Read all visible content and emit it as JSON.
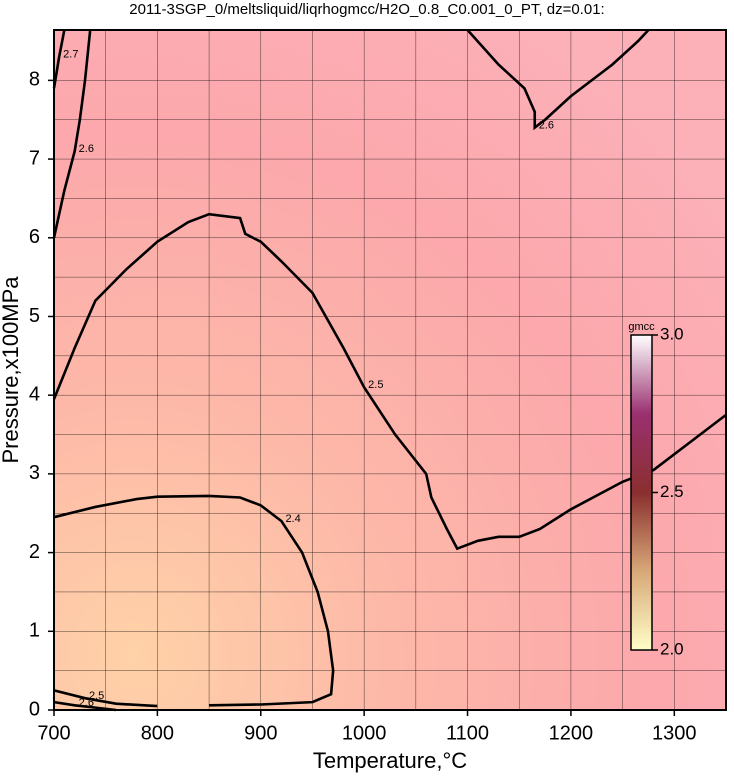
{
  "chart_data": {
    "type": "contour",
    "title": "2011-3SGP_0/meltsliquid/liqrhogmcc/H2O_0.8_C0.001_0_PT, dz=0.01:",
    "xlabel": "Temperature,°C",
    "ylabel": "Pressure,x100MPa",
    "xlim": [
      700,
      1350
    ],
    "ylim": [
      0,
      8.64
    ],
    "xticks": [
      700,
      800,
      900,
      1000,
      1100,
      1200,
      1300
    ],
    "yticks": [
      0,
      1,
      2,
      3,
      4,
      5,
      6,
      7,
      8
    ],
    "xminorticks": [
      750,
      850,
      950,
      1050,
      1150,
      1250
    ],
    "yminorticks": [
      0.5,
      1.5,
      2.5,
      3.5,
      4.5,
      5.5,
      6.5,
      7.5
    ],
    "grid": true,
    "line_color": "#000000",
    "contours": [
      {
        "level": 2.4,
        "x": [
          700,
          740,
          780,
          800,
          850,
          880,
          900,
          920,
          940,
          955,
          965,
          970,
          968,
          950,
          900,
          850
        ],
        "y": [
          2.45,
          2.58,
          2.68,
          2.71,
          2.72,
          2.7,
          2.6,
          2.4,
          2.0,
          1.5,
          1.0,
          0.5,
          0.2,
          0.1,
          0.07,
          0.06
        ]
      },
      {
        "level": 2.5,
        "x": [
          700,
          720,
          740,
          770,
          800,
          830,
          850,
          880,
          885,
          900,
          920,
          950,
          980,
          1000,
          1030,
          1060,
          1065,
          1080,
          1090,
          1110,
          1130,
          1150,
          1170,
          1200,
          1250,
          1280,
          1320,
          1350
        ],
        "y": [
          3.95,
          4.6,
          5.2,
          5.6,
          5.95,
          6.2,
          6.3,
          6.25,
          6.05,
          5.95,
          5.7,
          5.3,
          4.6,
          4.1,
          3.5,
          3.0,
          2.7,
          2.3,
          2.05,
          2.15,
          2.2,
          2.2,
          2.3,
          2.55,
          2.9,
          3.05,
          3.45,
          3.75
        ]
      },
      {
        "level": 2.6,
        "x": [
          1100,
          1130,
          1155,
          1165,
          1165,
          1175,
          1200,
          1240,
          1265,
          1275
        ],
        "y": [
          8.64,
          8.2,
          7.9,
          7.6,
          7.4,
          7.5,
          7.8,
          8.2,
          8.5,
          8.64
        ]
      },
      {
        "level": 2.6,
        "x": [
          700,
          710,
          720,
          725,
          730,
          735
        ],
        "y": [
          6.0,
          6.6,
          7.1,
          7.5,
          8.0,
          8.64
        ]
      },
      {
        "level": 2.7,
        "x": [
          700,
          705,
          710
        ],
        "y": [
          7.9,
          8.3,
          8.64
        ]
      },
      {
        "level": 2.5,
        "x": [
          700,
          730,
          760,
          800
        ],
        "y": [
          0.25,
          0.15,
          0.08,
          0.05
        ]
      },
      {
        "level": 2.6,
        "x": [
          700,
          720,
          740,
          760
        ],
        "y": [
          0.1,
          0.06,
          0.03,
          0.0
        ]
      }
    ],
    "colorbar": {
      "label": "gmcc",
      "clim": [
        2,
        3
      ],
      "ticks": [
        {
          "value": 2,
          "label": "2.0"
        },
        2.5,
        {
          "value": 3,
          "label": "3.0"
        }
      ],
      "colors": [
        "#ffffc8",
        "#d8a878",
        "#8a2f2f",
        "#9a3070",
        "#ffffff"
      ]
    }
  }
}
